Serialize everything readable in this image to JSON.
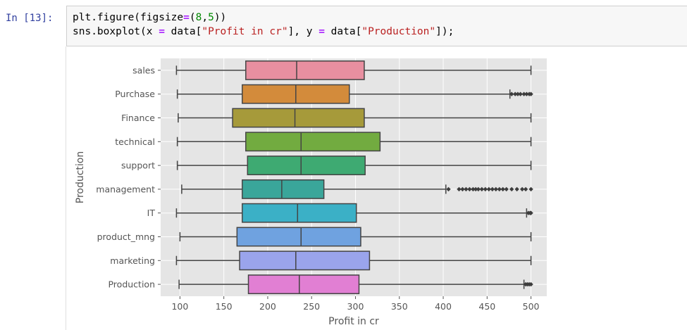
{
  "cell": {
    "prompt": "In [13]:",
    "code": {
      "line1": {
        "a": "plt.figure(figsize",
        "op": "=",
        "b": "(",
        "n1": "8",
        "c": ",",
        "n2": "5",
        "d": "))"
      },
      "line2": {
        "a": "sns.boxplot(x ",
        "op1": "=",
        "b": " data[",
        "s1": "\"Profit in cr\"",
        "c": "], y ",
        "op2": "=",
        "d": " data[",
        "s2": "\"Production\"",
        "e": "]);"
      }
    }
  },
  "colors": {
    "plot_background": "#e5e5e5",
    "grid": "#ffffff",
    "box_edge": "#444444",
    "prompt": "#303f9f"
  },
  "chart_data": {
    "type": "box",
    "orientation": "horizontal",
    "xlabel": "Profit in cr",
    "ylabel": "Production",
    "xlim": [
      78,
      518
    ],
    "xticks": [
      100,
      150,
      200,
      250,
      300,
      350,
      400,
      450,
      500
    ],
    "grid": true,
    "series": [
      {
        "category": "sales",
        "color": "#e88fa0",
        "whislo": 96,
        "q1": 175,
        "median": 233,
        "q3": 310,
        "whishi": 500,
        "fliers": []
      },
      {
        "category": "Purchase",
        "color": "#d38b3b",
        "whislo": 97,
        "q1": 171,
        "median": 232,
        "q3": 293,
        "whishi": 476,
        "fliers": [
          478,
          482,
          485,
          488,
          492,
          495,
          498,
          500
        ]
      },
      {
        "category": "Finance",
        "color": "#a69a3a",
        "whislo": 98,
        "q1": 160,
        "median": 231,
        "q3": 310,
        "whishi": 500,
        "fliers": []
      },
      {
        "category": "technical",
        "color": "#72ab40",
        "whislo": 97,
        "q1": 175,
        "median": 238,
        "q3": 328,
        "whishi": 500,
        "fliers": []
      },
      {
        "category": "support",
        "color": "#3eaa72",
        "whislo": 97,
        "q1": 177,
        "median": 238,
        "q3": 311,
        "whishi": 500,
        "fliers": []
      },
      {
        "category": "management",
        "color": "#3aa69a",
        "whislo": 102,
        "q1": 171,
        "median": 216,
        "q3": 264,
        "whishi": 403,
        "fliers": [
          406,
          418,
          422,
          426,
          430,
          434,
          437,
          440,
          444,
          448,
          452,
          456,
          460,
          464,
          468,
          472,
          478,
          484,
          490,
          494,
          500
        ]
      },
      {
        "category": "IT",
        "color": "#3bb0c6",
        "whislo": 96,
        "q1": 171,
        "median": 234,
        "q3": 301,
        "whishi": 495,
        "fliers": [
          497,
          499,
          500
        ]
      },
      {
        "category": "product_mng",
        "color": "#6fa2e0",
        "whislo": 100,
        "q1": 165,
        "median": 238,
        "q3": 306,
        "whishi": 500,
        "fliers": []
      },
      {
        "category": "marketing",
        "color": "#9aa4ec",
        "whislo": 96,
        "q1": 168,
        "median": 232,
        "q3": 316,
        "whishi": 500,
        "fliers": []
      },
      {
        "category": "Production",
        "color": "#e17fd3",
        "whislo": 99,
        "q1": 178,
        "median": 236,
        "q3": 304,
        "whishi": 492,
        "fliers": [
          494,
          496,
          498,
          500
        ]
      }
    ]
  }
}
